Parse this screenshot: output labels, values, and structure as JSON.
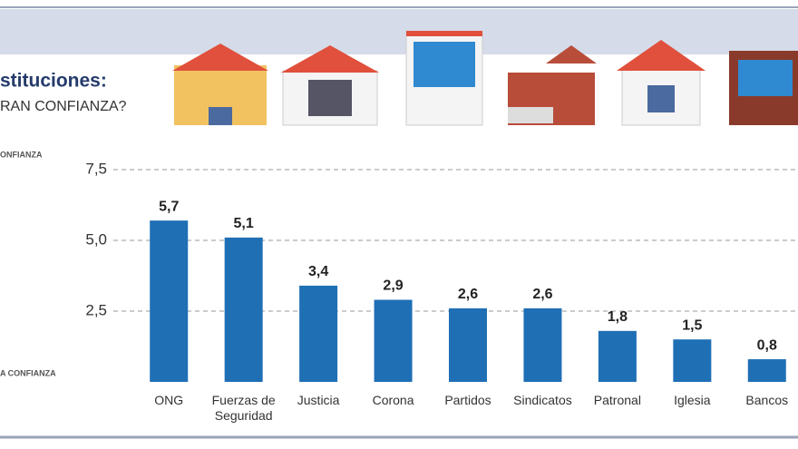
{
  "chart_data": {
    "type": "bar",
    "title": "stituciones:",
    "subtitle": "RAN CONFIANZA?",
    "axis_top_label": "ONFIANZA",
    "axis_bottom_label": "A CONFIANZA",
    "categories": [
      "ONG",
      "Fuerzas de Seguridad",
      "Justicia",
      "Corona",
      "Partidos",
      "Sindicatos",
      "Patronal",
      "Iglesia",
      "Bancos"
    ],
    "values": [
      5.7,
      5.1,
      3.4,
      2.9,
      2.6,
      2.6,
      1.8,
      1.5,
      0.8
    ],
    "value_labels": [
      "5,7",
      "5,1",
      "3,4",
      "2,9",
      "2,6",
      "2,6",
      "1,8",
      "1,5",
      "0,8"
    ],
    "color": "#1f6fb5",
    "ylim": [
      0,
      7.5
    ],
    "yticks": [
      {
        "value": 2.5,
        "label": "2,5"
      },
      {
        "value": 5.0,
        "label": "5,0"
      },
      {
        "value": 7.5,
        "label": "7,5"
      }
    ],
    "grid": true
  }
}
